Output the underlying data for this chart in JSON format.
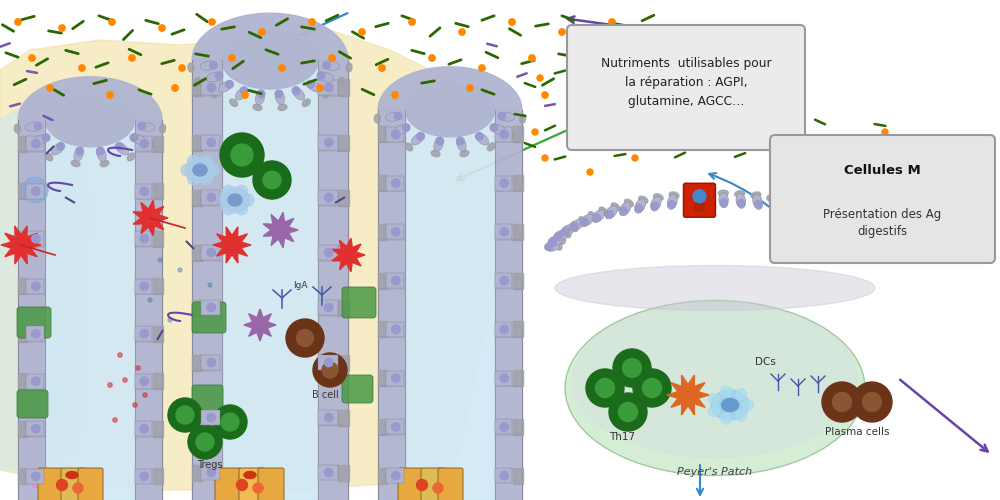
{
  "bg_color": "#ffffff",
  "box1_text": "Nutriments  utilisables pour\nla réparation : AGPI,\nglutamine, AGCC…",
  "box2_title": "Cellules M",
  "box2_text": "Présentation des Ag\ndigestifs",
  "label_tregs": "Tregs",
  "label_bcell": "B cell",
  "label_IgA": "IgA",
  "label_th17": "Th17",
  "label_DCs": "DCs",
  "label_plasma": "Plasma cells",
  "label_peyer": "Peyer's Patch",
  "villus_cell_color": "#b0b4d0",
  "villus_gray": "#a0a0a8",
  "villus_outline": "#808090",
  "lumen_color": "#d0e8f5",
  "yellow_bg": "#f0e0a0",
  "light_blue_bg": "#c8e8f5",
  "peyer_color": "#c8e8c8",
  "peyer_outline": "#88bb88",
  "green_cell_dark": "#1a6b1a",
  "green_cell_light": "#3a9b3a",
  "red_spiky_color": "#e03030",
  "purple_spiky_color": "#9966aa",
  "pink_spiky_color": "#dd4488",
  "orange_spiky_color": "#dd6622",
  "blue_cell_color": "#88bbdd",
  "brown_cell_color": "#6b3318",
  "orange_dot": "#ff8800",
  "green_dash": "#2d6600",
  "purple_dash": "#5533aa",
  "blue_arrow": "#3388cc",
  "green_arrow": "#33aa33",
  "purple_arrow": "#6644aa",
  "red_box_color": "#cc2200",
  "orange_base": "#e8a840",
  "green_patch_color": "#4a9944",
  "pink_base_color": "#dd88bb",
  "teal_base_color": "#66bbaa"
}
